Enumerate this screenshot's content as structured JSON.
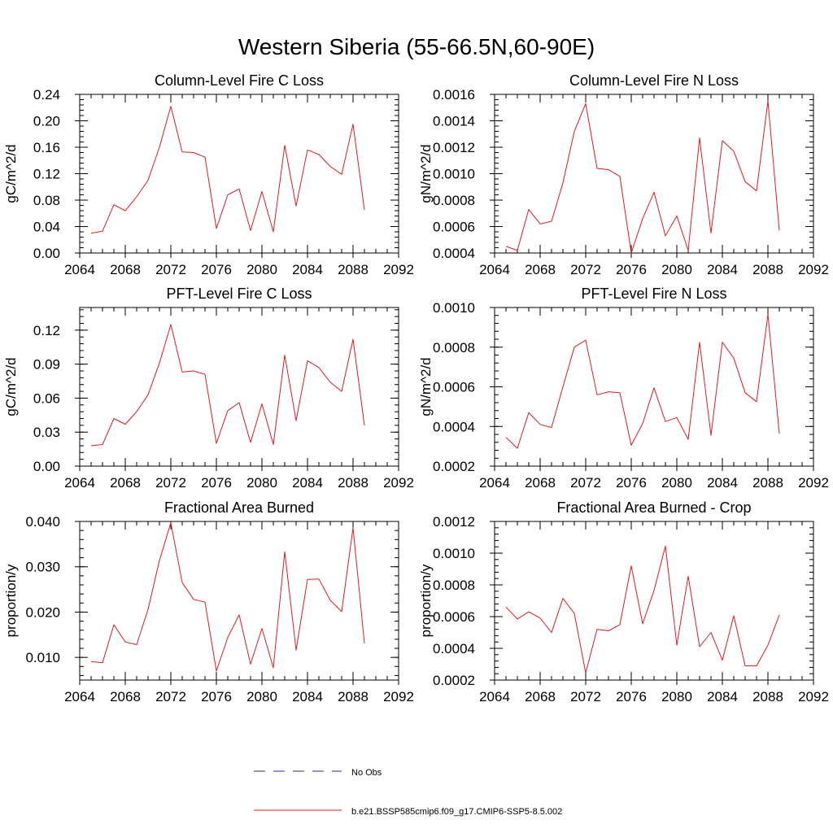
{
  "figure": {
    "title": "Western Siberia (55-66.5N,60-90E)"
  },
  "legend": [
    {
      "label": "No Obs",
      "style": "dashed",
      "color": "#2a2a9a"
    },
    {
      "label": "b.e21.BSSP585cmip6.f09_g17.CMIP6-SSP5-8.5.002",
      "style": "solid",
      "color": "#e31a1c"
    }
  ],
  "chart_data": [
    {
      "type": "line",
      "title": "Column-Level Fire C Loss",
      "ylabel": "gC/m^2/d",
      "xlim": [
        2064,
        2092
      ],
      "xticks": [
        2064,
        2068,
        2072,
        2076,
        2080,
        2084,
        2088,
        2092
      ],
      "xtick_labels": [
        "2064",
        "2068",
        "2072",
        "2076",
        "2080",
        "2084",
        "2088",
        "2092"
      ],
      "ylim": [
        0.0,
        0.24
      ],
      "yticks": [
        0.0,
        0.04,
        0.08,
        0.12,
        0.16,
        0.2,
        0.24
      ],
      "ytick_labels": [
        "0.00",
        "0.04",
        "0.08",
        "0.12",
        "0.16",
        "0.20",
        "0.24"
      ],
      "series": [
        {
          "color": "#e31a1c",
          "x": [
            2065,
            2066,
            2067,
            2068,
            2069,
            2070,
            2071,
            2072,
            2073,
            2074,
            2075,
            2076,
            2077,
            2078,
            2079,
            2080,
            2081,
            2082,
            2083,
            2084,
            2085,
            2086,
            2087,
            2088,
            2089
          ],
          "y": [
            0.03,
            0.033,
            0.073,
            0.064,
            0.085,
            0.11,
            0.16,
            0.222,
            0.153,
            0.152,
            0.145,
            0.037,
            0.088,
            0.097,
            0.034,
            0.093,
            0.032,
            0.163,
            0.071,
            0.156,
            0.149,
            0.131,
            0.119,
            0.195,
            0.065
          ]
        }
      ]
    },
    {
      "type": "line",
      "title": "Column-Level Fire N Loss",
      "ylabel": "gN/m^2/d",
      "xlim": [
        2064,
        2092
      ],
      "xticks": [
        2064,
        2068,
        2072,
        2076,
        2080,
        2084,
        2088,
        2092
      ],
      "xtick_labels": [
        "2064",
        "2068",
        "2072",
        "2076",
        "2080",
        "2084",
        "2088",
        "2092"
      ],
      "ylim": [
        0.0004,
        0.0016
      ],
      "yticks": [
        0.0004,
        0.0006,
        0.0008,
        0.001,
        0.0012,
        0.0014,
        0.0016
      ],
      "ytick_labels": [
        "0.0004",
        "0.0006",
        "0.0008",
        "0.0010",
        "0.0012",
        "0.0014",
        "0.0016"
      ],
      "series": [
        {
          "color": "#e31a1c",
          "x": [
            2065,
            2066,
            2067,
            2068,
            2069,
            2070,
            2071,
            2072,
            2073,
            2074,
            2075,
            2076,
            2077,
            2078,
            2079,
            2080,
            2081,
            2082,
            2083,
            2084,
            2085,
            2086,
            2087,
            2088,
            2089
          ],
          "y": [
            0.00045,
            0.00042,
            0.00073,
            0.00062,
            0.00064,
            0.00093,
            0.00132,
            0.00153,
            0.00104,
            0.00103,
            0.00098,
            0.0004,
            0.00066,
            0.00086,
            0.00053,
            0.00068,
            0.00042,
            0.00127,
            0.00055,
            0.00125,
            0.00117,
            0.00094,
            0.00087,
            0.00155,
            0.00057
          ]
        }
      ]
    },
    {
      "type": "line",
      "title": "PFT-Level Fire C Loss",
      "ylabel": "gC/m^2/d",
      "xlim": [
        2064,
        2092
      ],
      "xticks": [
        2064,
        2068,
        2072,
        2076,
        2080,
        2084,
        2088,
        2092
      ],
      "xtick_labels": [
        "2064",
        "2068",
        "2072",
        "2076",
        "2080",
        "2084",
        "2088",
        "2092"
      ],
      "ylim": [
        0.0,
        0.14
      ],
      "yticks": [
        0.0,
        0.03,
        0.06,
        0.09,
        0.12
      ],
      "ytick_labels": [
        "0.00",
        "0.03",
        "0.06",
        "0.09",
        "0.12"
      ],
      "series": [
        {
          "color": "#e31a1c",
          "x": [
            2065,
            2066,
            2067,
            2068,
            2069,
            2070,
            2071,
            2072,
            2073,
            2074,
            2075,
            2076,
            2077,
            2078,
            2079,
            2080,
            2081,
            2082,
            2083,
            2084,
            2085,
            2086,
            2087,
            2088,
            2089
          ],
          "y": [
            0.018,
            0.019,
            0.042,
            0.037,
            0.048,
            0.063,
            0.091,
            0.125,
            0.083,
            0.084,
            0.081,
            0.02,
            0.049,
            0.056,
            0.021,
            0.055,
            0.019,
            0.098,
            0.04,
            0.093,
            0.087,
            0.074,
            0.066,
            0.112,
            0.036
          ]
        }
      ]
    },
    {
      "type": "line",
      "title": "PFT-Level Fire N Loss",
      "ylabel": "gN/m^2/d",
      "xlim": [
        2064,
        2092
      ],
      "xticks": [
        2064,
        2068,
        2072,
        2076,
        2080,
        2084,
        2088,
        2092
      ],
      "xtick_labels": [
        "2064",
        "2068",
        "2072",
        "2076",
        "2080",
        "2084",
        "2088",
        "2092"
      ],
      "ylim": [
        0.0002,
        0.001
      ],
      "yticks": [
        0.0002,
        0.0004,
        0.0006,
        0.0008,
        0.001
      ],
      "ytick_labels": [
        "0.0002",
        "0.0004",
        "0.0006",
        "0.0008",
        "0.0010"
      ],
      "series": [
        {
          "color": "#e31a1c",
          "x": [
            2065,
            2066,
            2067,
            2068,
            2069,
            2070,
            2071,
            2072,
            2073,
            2074,
            2075,
            2076,
            2077,
            2078,
            2079,
            2080,
            2081,
            2082,
            2083,
            2084,
            2085,
            2086,
            2087,
            2088,
            2089
          ],
          "y": [
            0.000345,
            0.00029,
            0.00047,
            0.00041,
            0.000395,
            0.0006,
            0.0008,
            0.000835,
            0.00056,
            0.000575,
            0.00057,
            0.000305,
            0.000415,
            0.000595,
            0.000425,
            0.000445,
            0.000335,
            0.000825,
            0.000355,
            0.000825,
            0.000745,
            0.00057,
            0.000525,
            0.000965,
            0.000365
          ]
        }
      ]
    },
    {
      "type": "line",
      "title": "Fractional Area Burned",
      "ylabel": "proportion/y",
      "xlim": [
        2064,
        2092
      ],
      "xticks": [
        2064,
        2068,
        2072,
        2076,
        2080,
        2084,
        2088,
        2092
      ],
      "xtick_labels": [
        "2064",
        "2068",
        "2072",
        "2076",
        "2080",
        "2084",
        "2088",
        "2092"
      ],
      "ylim": [
        0.005,
        0.04
      ],
      "yticks": [
        0.01,
        0.02,
        0.03,
        0.04
      ],
      "ytick_labels": [
        "0.010",
        "0.020",
        "0.030",
        "0.040"
      ],
      "series": [
        {
          "color": "#e31a1c",
          "x": [
            2065,
            2066,
            2067,
            2068,
            2069,
            2070,
            2071,
            2072,
            2073,
            2074,
            2075,
            2076,
            2077,
            2078,
            2079,
            2080,
            2081,
            2082,
            2083,
            2084,
            2085,
            2086,
            2087,
            2088,
            2089
          ],
          "y": [
            0.0091,
            0.0088,
            0.0172,
            0.0134,
            0.0128,
            0.0206,
            0.0314,
            0.0397,
            0.0265,
            0.0228,
            0.0222,
            0.007,
            0.0144,
            0.0194,
            0.0085,
            0.0164,
            0.0077,
            0.0333,
            0.0116,
            0.0272,
            0.0273,
            0.0226,
            0.0201,
            0.0386,
            0.0131
          ]
        }
      ]
    },
    {
      "type": "line",
      "title": "Fractional Area Burned - Crop",
      "ylabel": "proportion/y",
      "xlim": [
        2064,
        2092
      ],
      "xticks": [
        2064,
        2068,
        2072,
        2076,
        2080,
        2084,
        2088,
        2092
      ],
      "xtick_labels": [
        "2064",
        "2068",
        "2072",
        "2076",
        "2080",
        "2084",
        "2088",
        "2092"
      ],
      "ylim": [
        0.0002,
        0.0012
      ],
      "yticks": [
        0.0002,
        0.0004,
        0.0006,
        0.0008,
        0.001,
        0.0012
      ],
      "ytick_labels": [
        "0.0002",
        "0.0004",
        "0.0006",
        "0.0008",
        "0.0010",
        "0.0012"
      ],
      "series": [
        {
          "color": "#e31a1c",
          "x": [
            2065,
            2066,
            2067,
            2068,
            2069,
            2070,
            2071,
            2072,
            2073,
            2074,
            2075,
            2076,
            2077,
            2078,
            2079,
            2080,
            2081,
            2082,
            2083,
            2084,
            2085,
            2086,
            2087,
            2088,
            2089
          ],
          "y": [
            0.00066,
            0.000585,
            0.00063,
            0.00059,
            0.0005,
            0.000715,
            0.00062,
            0.000245,
            0.00052,
            0.00051,
            0.00055,
            0.00092,
            0.000555,
            0.000765,
            0.001045,
            0.00042,
            0.000855,
            0.00041,
            0.0005,
            0.000325,
            0.000605,
            0.00029,
            0.00029,
            0.00042,
            0.00061
          ]
        }
      ]
    }
  ]
}
